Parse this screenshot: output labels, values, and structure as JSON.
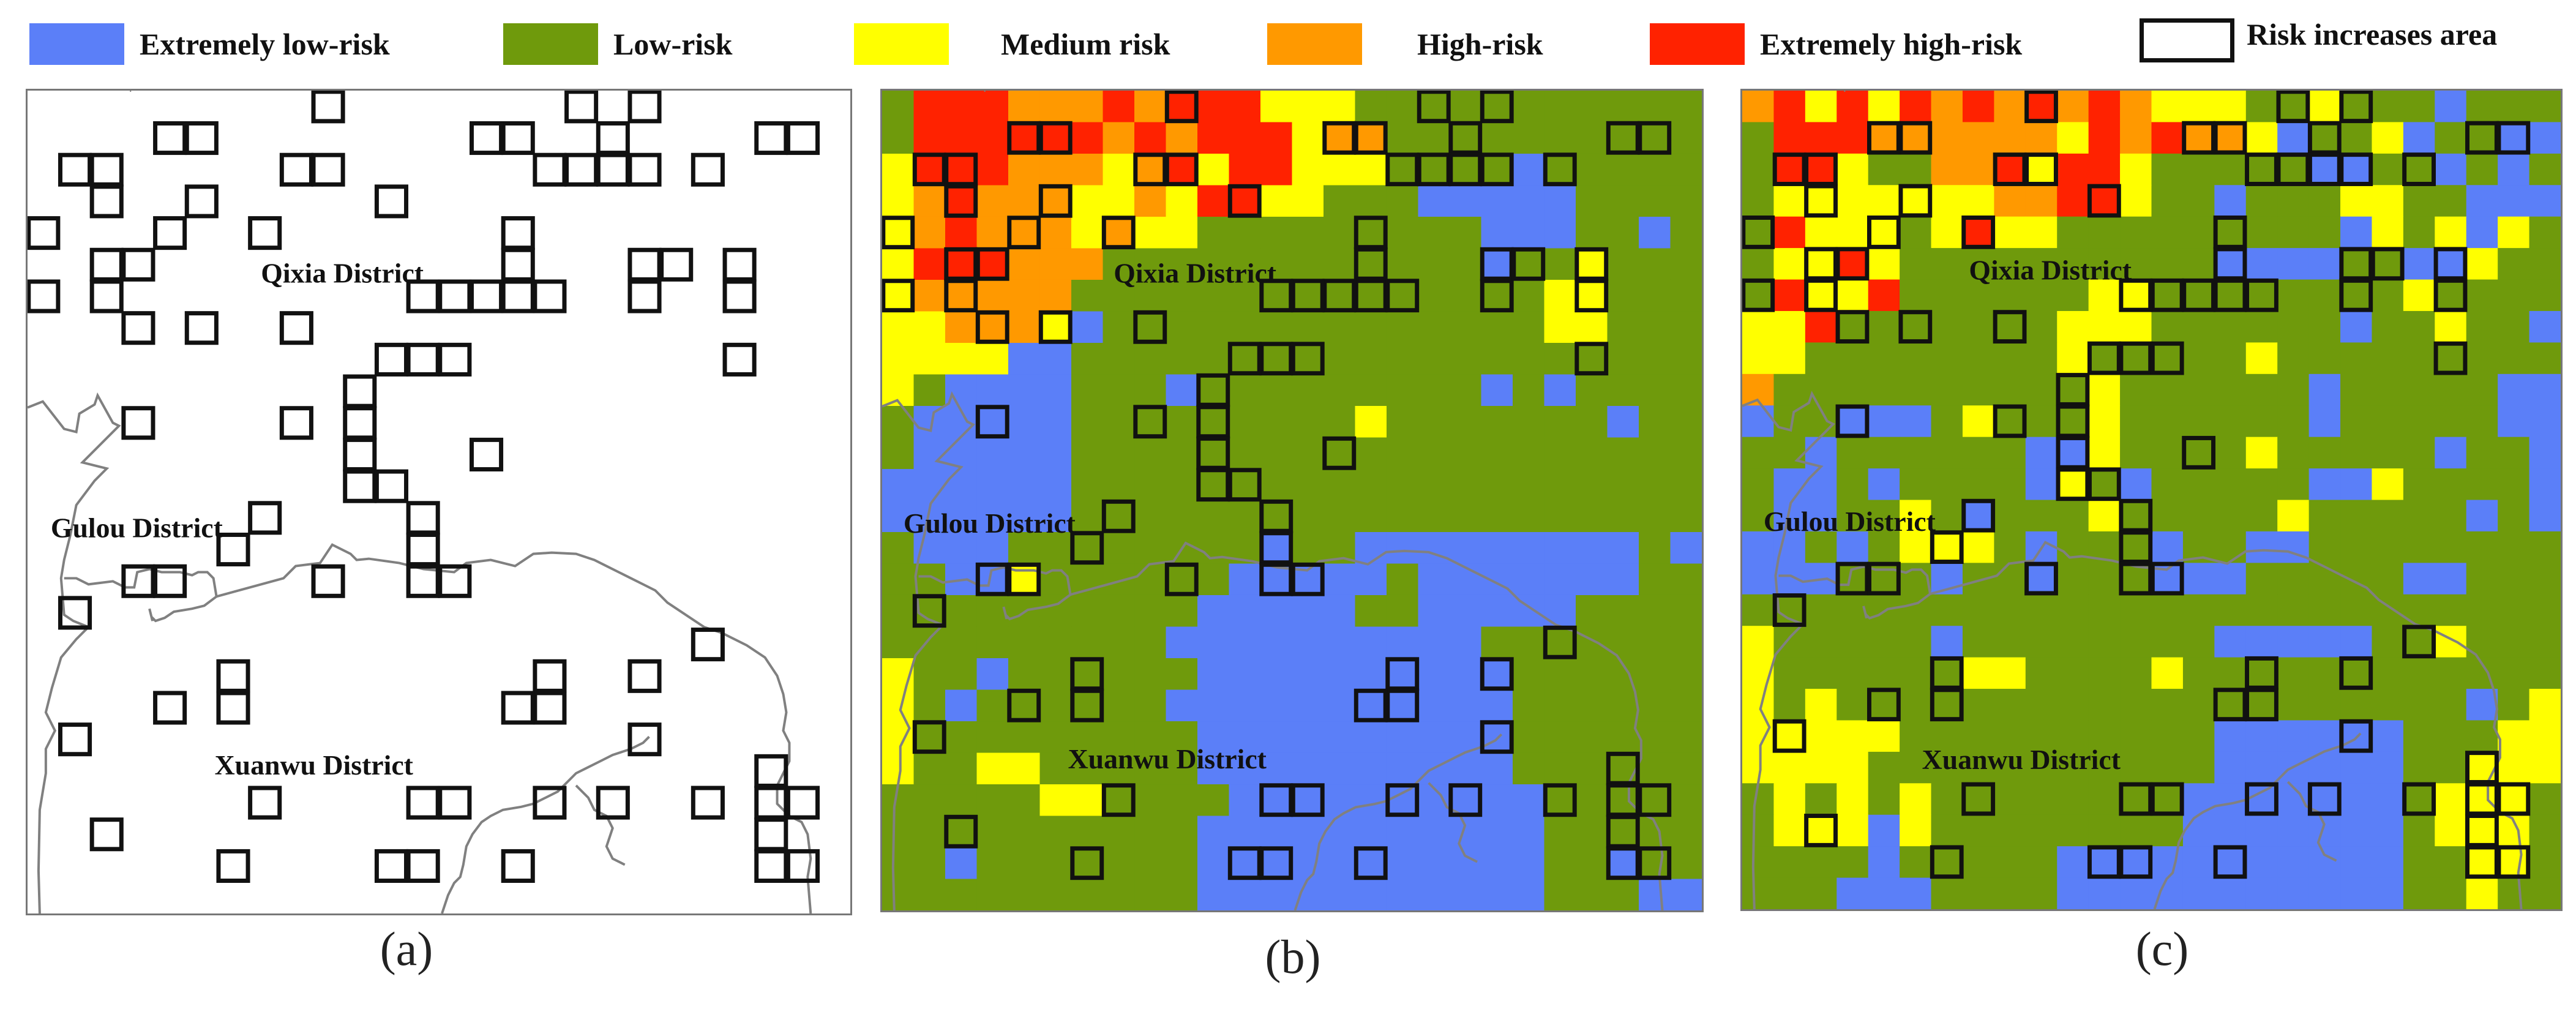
{
  "legend": {
    "items": [
      {
        "label": "Extremely low-risk",
        "color": "#5b7ff8"
      },
      {
        "label": "Low-risk",
        "color": "#6f9a0c"
      },
      {
        "label": "Medium risk",
        "color": "#ffff00"
      },
      {
        "label": "High-risk",
        "color": "#ff9900"
      },
      {
        "label": "Extremely high-risk",
        "color": "#ff2200"
      },
      {
        "label": "Risk increases area",
        "color": "#ffffff"
      }
    ]
  },
  "districts": {
    "qixia": "Qixia District",
    "gulou": "Gulou District",
    "xuanwu": "Xuanwu District"
  },
  "captions": {
    "a": "(a)",
    "b": "(b)",
    "c": "(c)"
  },
  "colors": {
    "boundary": "#808080",
    "highlight_border": "#111111"
  }
}
